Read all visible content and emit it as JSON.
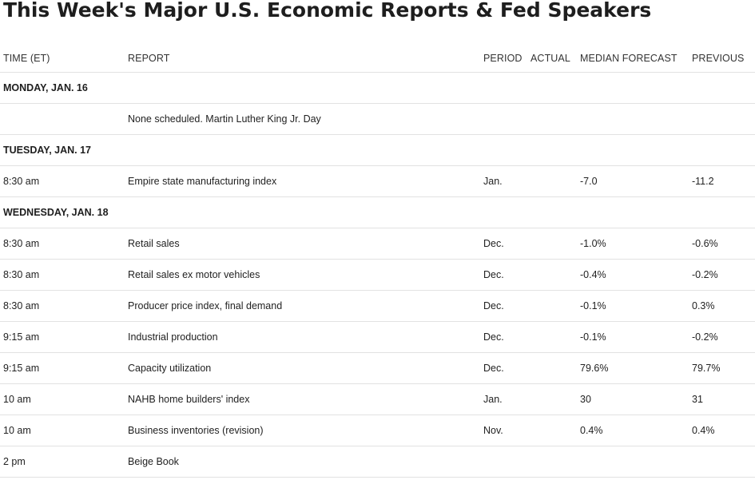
{
  "title": "This Week's Major U.S. Economic Reports & Fed Speakers",
  "headers": {
    "time": "TIME (ET)",
    "report": "REPORT",
    "period": "PERIOD",
    "actual": "ACTUAL",
    "forecast": "MEDIAN FORECAST",
    "previous": "PREVIOUS"
  },
  "rows": [
    {
      "day": "MONDAY, JAN. 16"
    },
    {
      "time": "",
      "report": "None scheduled. Martin Luther King Jr. Day",
      "period": "",
      "actual": "",
      "forecast": "",
      "previous": ""
    },
    {
      "day": "TUESDAY, JAN. 17"
    },
    {
      "time": "8:30 am",
      "report": "Empire state manufacturing index",
      "period": "Jan.",
      "actual": "",
      "forecast": "-7.0",
      "previous": "-11.2"
    },
    {
      "day": "WEDNESDAY, JAN. 18"
    },
    {
      "time": "8:30 am",
      "report": "Retail sales",
      "period": "Dec.",
      "actual": "",
      "forecast": "-1.0%",
      "previous": "-0.6%"
    },
    {
      "time": "8:30 am",
      "report": "Retail sales ex motor vehicles",
      "period": "Dec.",
      "actual": "",
      "forecast": "-0.4%",
      "previous": "-0.2%"
    },
    {
      "time": "8:30 am",
      "report": "Producer price index, final demand",
      "period": "Dec.",
      "actual": "",
      "forecast": "-0.1%",
      "previous": "0.3%"
    },
    {
      "time": "9:15 am",
      "report": "Industrial production",
      "period": "Dec.",
      "actual": "",
      "forecast": "-0.1%",
      "previous": "-0.2%"
    },
    {
      "time": "9:15 am",
      "report": "Capacity utilization",
      "period": "Dec.",
      "actual": "",
      "forecast": "79.6%",
      "previous": "79.7%"
    },
    {
      "time": "10 am",
      "report": "NAHB home builders' index",
      "period": "Jan.",
      "actual": "",
      "forecast": "30",
      "previous": "31"
    },
    {
      "time": "10 am",
      "report": "Business inventories (revision)",
      "period": "Nov.",
      "actual": "",
      "forecast": "0.4%",
      "previous": "0.4%"
    },
    {
      "time": "2 pm",
      "report": "Beige Book",
      "period": "",
      "actual": "",
      "forecast": "",
      "previous": ""
    }
  ]
}
